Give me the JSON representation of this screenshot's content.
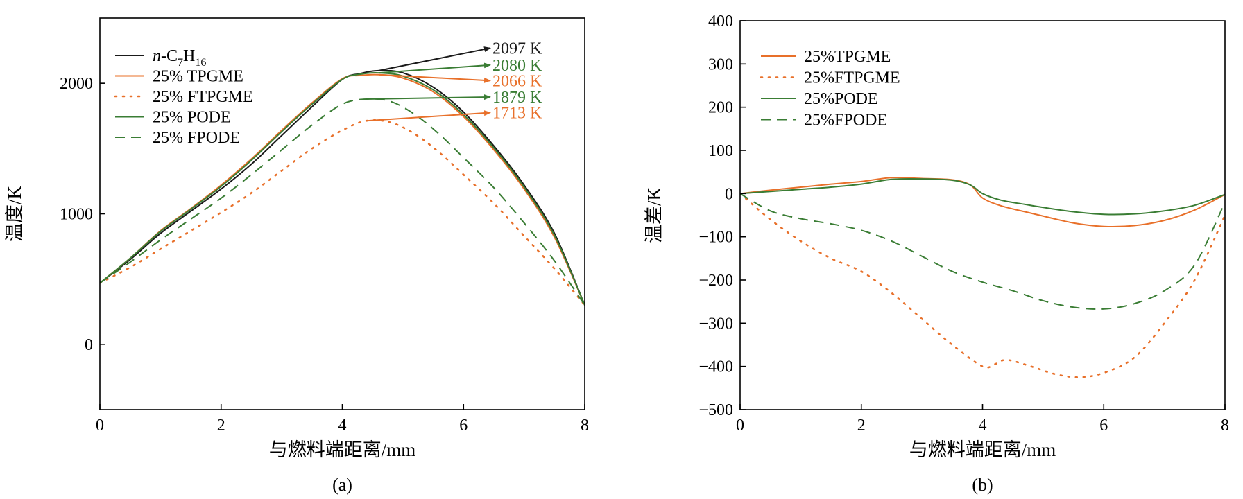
{
  "colors": {
    "black": "#1a1a1a",
    "orange": "#e8702a",
    "green": "#3a7d34",
    "axis": "#000000"
  },
  "chart_data": [
    {
      "type": "line",
      "panel_label": "(a)",
      "xlabel": "与燃料端距离/mm",
      "ylabel": "温度/K",
      "xlim": [
        0,
        8
      ],
      "ylim": [
        -500,
        2500
      ],
      "xticks": [
        {
          "value": 0,
          "label": "0"
        },
        {
          "value": 2,
          "label": "2"
        },
        {
          "value": 4,
          "label": "4"
        },
        {
          "value": 6,
          "label": "6"
        },
        {
          "value": 8,
          "label": "8"
        }
      ],
      "yticks": [
        {
          "value": 0,
          "label": "0"
        },
        {
          "value": 1000,
          "label": "1000"
        },
        {
          "value": 2000,
          "label": "2000"
        }
      ],
      "legend_position": "top-left",
      "series": [
        {
          "name": "n-C7H16",
          "legend": {
            "italic_prefix": "n",
            "rest": "-C",
            "sub1": "7",
            "mid": "H",
            "sub2": "16"
          },
          "color": "#1a1a1a",
          "style": "solid",
          "points": [
            [
              0,
              470
            ],
            [
              0.5,
              650
            ],
            [
              1,
              850
            ],
            [
              1.5,
              1020
            ],
            [
              2,
              1190
            ],
            [
              2.5,
              1380
            ],
            [
              3,
              1600
            ],
            [
              3.5,
              1820
            ],
            [
              4,
              2030
            ],
            [
              4.3,
              2075
            ],
            [
              4.6,
              2097
            ],
            [
              5,
              2080
            ],
            [
              5.5,
              1970
            ],
            [
              6,
              1780
            ],
            [
              6.5,
              1520
            ],
            [
              7,
              1220
            ],
            [
              7.5,
              850
            ],
            [
              8,
              300
            ]
          ]
        },
        {
          "name": "25% TPGME",
          "legend": {
            "text": "25% TPGME"
          },
          "color": "#e8702a",
          "style": "solid",
          "points": [
            [
              0,
              470
            ],
            [
              0.5,
              660
            ],
            [
              1,
              870
            ],
            [
              1.5,
              1040
            ],
            [
              2,
              1220
            ],
            [
              2.5,
              1420
            ],
            [
              3,
              1640
            ],
            [
              3.5,
              1850
            ],
            [
              4,
              2035
            ],
            [
              4.3,
              2060
            ],
            [
              4.6,
              2066
            ],
            [
              5,
              2040
            ],
            [
              5.5,
              1935
            ],
            [
              6,
              1745
            ],
            [
              6.5,
              1490
            ],
            [
              7,
              1190
            ],
            [
              7.5,
              820
            ],
            [
              8,
              300
            ]
          ]
        },
        {
          "name": "25% FTPGME",
          "legend": {
            "text": "25% FTPGME"
          },
          "color": "#e8702a",
          "style": "dotted",
          "points": [
            [
              0,
              470
            ],
            [
              0.5,
              590
            ],
            [
              1,
              730
            ],
            [
              1.5,
              870
            ],
            [
              2,
              1010
            ],
            [
              2.5,
              1160
            ],
            [
              3,
              1330
            ],
            [
              3.5,
              1500
            ],
            [
              4,
              1640
            ],
            [
              4.4,
              1713
            ],
            [
              4.8,
              1700
            ],
            [
              5.2,
              1610
            ],
            [
              5.6,
              1470
            ],
            [
              6,
              1300
            ],
            [
              6.5,
              1080
            ],
            [
              7,
              830
            ],
            [
              7.5,
              580
            ],
            [
              8,
              300
            ]
          ]
        },
        {
          "name": "25% PODE",
          "legend": {
            "text": "25% PODE"
          },
          "color": "#3a7d34",
          "style": "solid",
          "points": [
            [
              0,
              470
            ],
            [
              0.5,
              660
            ],
            [
              1,
              865
            ],
            [
              1.5,
              1035
            ],
            [
              2,
              1210
            ],
            [
              2.5,
              1410
            ],
            [
              3,
              1630
            ],
            [
              3.5,
              1840
            ],
            [
              4,
              2030
            ],
            [
              4.3,
              2070
            ],
            [
              4.6,
              2080
            ],
            [
              5,
              2055
            ],
            [
              5.5,
              1950
            ],
            [
              6,
              1760
            ],
            [
              6.5,
              1505
            ],
            [
              7,
              1205
            ],
            [
              7.5,
              835
            ],
            [
              8,
              300
            ]
          ]
        },
        {
          "name": "25% FPODE",
          "legend": {
            "text": "25% FPODE"
          },
          "color": "#3a7d34",
          "style": "dashed",
          "points": [
            [
              0,
              470
            ],
            [
              0.5,
              630
            ],
            [
              1,
              800
            ],
            [
              1.5,
              960
            ],
            [
              2,
              1120
            ],
            [
              2.5,
              1300
            ],
            [
              3,
              1490
            ],
            [
              3.5,
              1680
            ],
            [
              4,
              1840
            ],
            [
              4.4,
              1879
            ],
            [
              4.8,
              1860
            ],
            [
              5.2,
              1760
            ],
            [
              5.6,
              1610
            ],
            [
              6,
              1430
            ],
            [
              6.5,
              1200
            ],
            [
              7,
              930
            ],
            [
              7.5,
              640
            ],
            [
              8,
              300
            ]
          ]
        }
      ],
      "annotations": [
        {
          "text": "2097 K",
          "color": "#1a1a1a",
          "value": 2097,
          "from": [
            4.6,
            2097
          ],
          "label_y": 2270
        },
        {
          "text": "2080 K",
          "color": "#3a7d34",
          "value": 2080,
          "from": [
            4.6,
            2080
          ],
          "label_y": 2140
        },
        {
          "text": "2066 K",
          "color": "#e8702a",
          "value": 2066,
          "from": [
            4.6,
            2066
          ],
          "label_y": 2020
        },
        {
          "text": "1879 K",
          "color": "#3a7d34",
          "value": 1879,
          "from": [
            4.4,
            1879
          ],
          "label_y": 1895
        },
        {
          "text": "1713 K",
          "color": "#e8702a",
          "value": 1713,
          "from": [
            4.4,
            1713
          ],
          "label_y": 1775
        }
      ]
    },
    {
      "type": "line",
      "panel_label": "(b)",
      "xlabel": "与燃料端距离/mm",
      "ylabel": "温差/K",
      "xlim": [
        0,
        8
      ],
      "ylim": [
        -500,
        400
      ],
      "xticks": [
        {
          "value": 0,
          "label": "0"
        },
        {
          "value": 2,
          "label": "2"
        },
        {
          "value": 4,
          "label": "4"
        },
        {
          "value": 6,
          "label": "6"
        },
        {
          "value": 8,
          "label": "8"
        }
      ],
      "yticks": [
        {
          "value": -500,
          "label": "−500"
        },
        {
          "value": -400,
          "label": "−400"
        },
        {
          "value": -300,
          "label": "−300"
        },
        {
          "value": -200,
          "label": "−200"
        },
        {
          "value": -100,
          "label": "−100"
        },
        {
          "value": 0,
          "label": "0"
        },
        {
          "value": 100,
          "label": "100"
        },
        {
          "value": 200,
          "label": "200"
        },
        {
          "value": 300,
          "label": "300"
        },
        {
          "value": 400,
          "label": "400"
        }
      ],
      "legend_position": "top-left",
      "series": [
        {
          "name": "25%TPGME",
          "legend": {
            "text": "25%TPGME"
          },
          "color": "#e8702a",
          "style": "solid",
          "points": [
            [
              0,
              0
            ],
            [
              0.5,
              8
            ],
            [
              1,
              15
            ],
            [
              1.5,
              22
            ],
            [
              2,
              28
            ],
            [
              2.5,
              37
            ],
            [
              3,
              35
            ],
            [
              3.5,
              32
            ],
            [
              3.8,
              20
            ],
            [
              4,
              -10
            ],
            [
              4.3,
              -28
            ],
            [
              4.7,
              -42
            ],
            [
              5,
              -52
            ],
            [
              5.5,
              -68
            ],
            [
              6,
              -76
            ],
            [
              6.5,
              -74
            ],
            [
              7,
              -62
            ],
            [
              7.5,
              -38
            ],
            [
              8,
              -2
            ]
          ]
        },
        {
          "name": "25%FTPGME",
          "legend": {
            "text": "25%FTPGME"
          },
          "color": "#e8702a",
          "style": "dotted",
          "points": [
            [
              0,
              0
            ],
            [
              0.5,
              -60
            ],
            [
              1,
              -110
            ],
            [
              1.5,
              -150
            ],
            [
              2,
              -180
            ],
            [
              2.5,
              -230
            ],
            [
              3,
              -290
            ],
            [
              3.5,
              -350
            ],
            [
              4,
              -400
            ],
            [
              4.2,
              -395
            ],
            [
              4.4,
              -385
            ],
            [
              4.8,
              -400
            ],
            [
              5.2,
              -418
            ],
            [
              5.6,
              -425
            ],
            [
              6,
              -415
            ],
            [
              6.5,
              -380
            ],
            [
              7,
              -300
            ],
            [
              7.5,
              -200
            ],
            [
              8,
              -50
            ]
          ]
        },
        {
          "name": "25%PODE",
          "legend": {
            "text": "25%PODE"
          },
          "color": "#3a7d34",
          "style": "solid",
          "points": [
            [
              0,
              0
            ],
            [
              0.5,
              5
            ],
            [
              1,
              10
            ],
            [
              1.5,
              15
            ],
            [
              2,
              22
            ],
            [
              2.5,
              33
            ],
            [
              3,
              34
            ],
            [
              3.5,
              31
            ],
            [
              3.8,
              20
            ],
            [
              4,
              0
            ],
            [
              4.3,
              -15
            ],
            [
              4.7,
              -25
            ],
            [
              5,
              -32
            ],
            [
              5.5,
              -42
            ],
            [
              6,
              -48
            ],
            [
              6.5,
              -47
            ],
            [
              7,
              -40
            ],
            [
              7.5,
              -27
            ],
            [
              8,
              -2
            ]
          ]
        },
        {
          "name": "25%FPODE",
          "legend": {
            "text": "25%FPODE"
          },
          "color": "#3a7d34",
          "style": "dashed",
          "points": [
            [
              0,
              0
            ],
            [
              0.5,
              -40
            ],
            [
              1,
              -58
            ],
            [
              1.5,
              -70
            ],
            [
              2,
              -85
            ],
            [
              2.5,
              -110
            ],
            [
              3,
              -145
            ],
            [
              3.5,
              -180
            ],
            [
              4,
              -205
            ],
            [
              4.5,
              -225
            ],
            [
              5,
              -248
            ],
            [
              5.5,
              -263
            ],
            [
              6,
              -267
            ],
            [
              6.5,
              -255
            ],
            [
              7,
              -225
            ],
            [
              7.5,
              -165
            ],
            [
              8,
              -20
            ]
          ]
        }
      ]
    }
  ]
}
